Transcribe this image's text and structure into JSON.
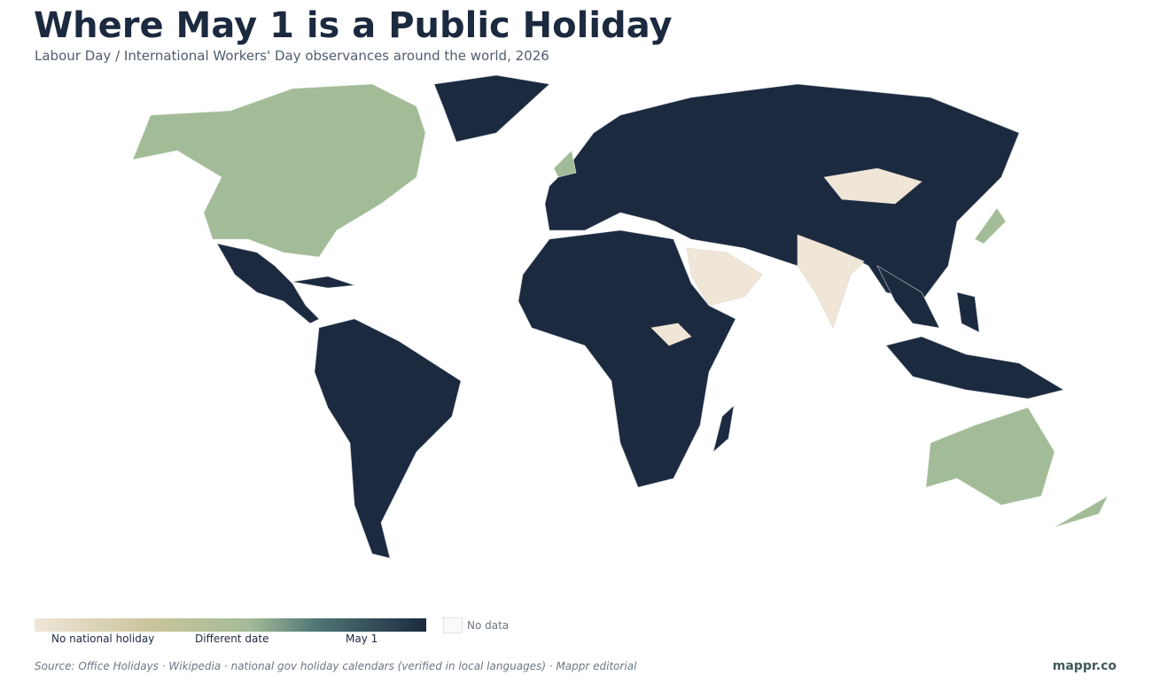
{
  "title": "Where May 1 is a Public Holiday",
  "subtitle": "Labour Day / International Workers' Day observances around the world, 2026",
  "legend": {
    "labels": [
      "No national holiday",
      "Different date",
      "May 1"
    ],
    "no_data": "No data"
  },
  "source": "Source: Office Holidays · Wikipedia · national gov holiday calendars (verified in local languages) · Mappr editorial",
  "brand": "mappr.co"
}
